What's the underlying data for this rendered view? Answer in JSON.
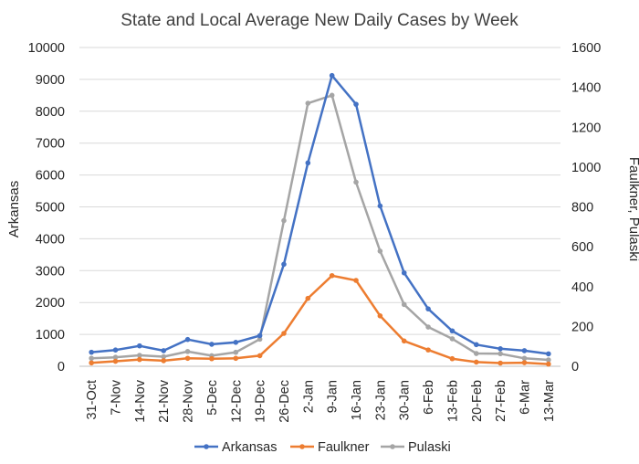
{
  "chart_data": {
    "type": "line",
    "title": "State and Local Average New Daily Cases by Week",
    "categories": [
      "31-Oct",
      "7-Nov",
      "14-Nov",
      "21-Nov",
      "28-Nov",
      "5-Dec",
      "12-Dec",
      "19-Dec",
      "26-Dec",
      "2-Jan",
      "9-Jan",
      "16-Jan",
      "23-Jan",
      "30-Jan",
      "6-Feb",
      "13-Feb",
      "20-Feb",
      "27-Feb",
      "6-Mar",
      "13-Mar"
    ],
    "ylabel_left": "Arkansas",
    "ylabel_right": "Faulkner, Pulaski",
    "ylim_left": [
      0,
      10000
    ],
    "ylim_right": [
      0,
      1600
    ],
    "yticks_left": [
      "0",
      "1000",
      "2000",
      "3000",
      "4000",
      "5000",
      "6000",
      "7000",
      "8000",
      "9000",
      "10000"
    ],
    "yticks_right": [
      "0",
      "200",
      "400",
      "600",
      "800",
      "1000",
      "1200",
      "1400",
      "1600"
    ],
    "grid": true,
    "legend_position": "bottom",
    "series": [
      {
        "name": "Arkansas",
        "axis": "left",
        "color": "#4472C4",
        "values": [
          440,
          510,
          640,
          490,
          840,
          690,
          750,
          960,
          3200,
          6380,
          9120,
          8220,
          5030,
          2930,
          1800,
          1110,
          680,
          550,
          490,
          390
        ]
      },
      {
        "name": "Faulkner",
        "axis": "right",
        "color": "#ED7D31",
        "values": [
          17,
          25,
          34,
          28,
          40,
          38,
          40,
          53,
          165,
          341,
          455,
          431,
          253,
          127,
          82,
          38,
          21,
          16,
          18,
          11
        ]
      },
      {
        "name": "Pulaski",
        "axis": "right",
        "color": "#A5A5A5",
        "values": [
          40,
          45,
          55,
          48,
          74,
          53,
          70,
          136,
          731,
          1320,
          1360,
          924,
          578,
          310,
          197,
          138,
          64,
          63,
          40,
          32
        ]
      }
    ]
  }
}
